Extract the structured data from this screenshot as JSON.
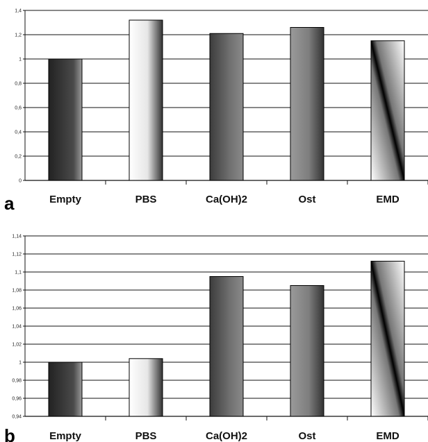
{
  "chart_data": [
    {
      "type": "bar",
      "panel_label": "a",
      "categories": [
        "Empty",
        "PBS",
        "Ca(OH)2",
        "Ost",
        "EMD"
      ],
      "values": [
        1.0,
        1.32,
        1.21,
        1.26,
        1.15
      ],
      "ylim": [
        0,
        1.4
      ],
      "yticks": [
        0,
        0.2,
        0.4,
        0.6,
        0.8,
        1,
        1.2,
        1.4
      ],
      "ytick_labels": [
        "0",
        "0,2",
        "0,4",
        "0,6",
        "0,8",
        "1",
        "1,2",
        "1,4"
      ],
      "grid": true,
      "bar_fills": [
        "grad-dark",
        "grad-light",
        "grad-mid",
        "grad-ost",
        "grad-emd"
      ]
    },
    {
      "type": "bar",
      "panel_label": "b",
      "categories": [
        "Empty",
        "PBS",
        "Ca(OH)2",
        "Ost",
        "EMD"
      ],
      "values": [
        1.0,
        1.004,
        1.095,
        1.085,
        1.112
      ],
      "ylim": [
        0.94,
        1.14
      ],
      "yticks": [
        0.94,
        0.96,
        0.98,
        1.0,
        1.02,
        1.04,
        1.06,
        1.08,
        1.1,
        1.12,
        1.14
      ],
      "ytick_labels": [
        "0,94",
        "0,96",
        "0,98",
        "1",
        "1,02",
        "1,04",
        "1,06",
        "1,08",
        "1,1",
        "1,12",
        "1,14"
      ],
      "grid": true,
      "bar_fills": [
        "grad-dark",
        "grad-light",
        "grad-mid",
        "grad-ost",
        "grad-emd"
      ]
    }
  ]
}
